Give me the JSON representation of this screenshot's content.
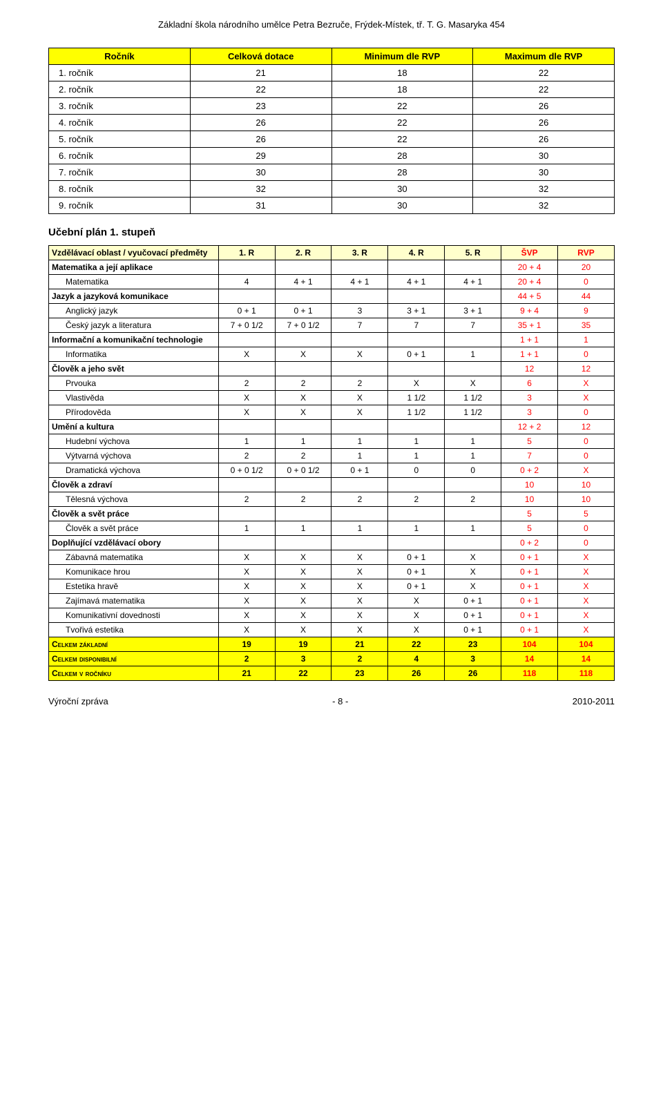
{
  "header": "Základní škola národního umělce Petra Bezruče, Frýdek-Místek, tř. T. G. Masaryka 454",
  "table1": {
    "columns": [
      "Ročník",
      "Celková dotace",
      "Minimum dle RVP",
      "Maximum dle RVP"
    ],
    "rows": [
      [
        "1. ročník",
        "21",
        "18",
        "22"
      ],
      [
        "2. ročník",
        "22",
        "18",
        "22"
      ],
      [
        "3. ročník",
        "23",
        "22",
        "26"
      ],
      [
        "4. ročník",
        "26",
        "22",
        "26"
      ],
      [
        "5. ročník",
        "26",
        "22",
        "26"
      ],
      [
        "6. ročník",
        "29",
        "28",
        "30"
      ],
      [
        "7. ročník",
        "30",
        "28",
        "30"
      ],
      [
        "8. ročník",
        "32",
        "30",
        "32"
      ],
      [
        "9. ročník",
        "31",
        "30",
        "32"
      ]
    ]
  },
  "section_title": "Učební plán 1. stupeň",
  "table2": {
    "columns": [
      "Vzdělávací oblast / vyučovací předměty",
      "1. R",
      "2. R",
      "3. R",
      "4. R",
      "5. R",
      "ŠVP",
      "RVP"
    ],
    "rows": [
      {
        "type": "cat",
        "cells": [
          "Matematika a její aplikace",
          "",
          "",
          "",
          "",
          "",
          "20 + 4",
          "20"
        ]
      },
      {
        "type": "sub",
        "cells": [
          "Matematika",
          "4",
          "4 + 1",
          "4 + 1",
          "4 + 1",
          "4 + 1",
          "20 + 4",
          "0"
        ]
      },
      {
        "type": "cat",
        "cells": [
          "Jazyk a jazyková komunikace",
          "",
          "",
          "",
          "",
          "",
          "44 + 5",
          "44"
        ]
      },
      {
        "type": "sub",
        "cells": [
          "Anglický jazyk",
          "0 + 1",
          "0 + 1",
          "3",
          "3 + 1",
          "3 + 1",
          "9 + 4",
          "9"
        ]
      },
      {
        "type": "sub",
        "cells": [
          "Český jazyk a literatura",
          "7 + 0 1/2",
          "7 + 0 1/2",
          "7",
          "7",
          "7",
          "35 + 1",
          "35"
        ]
      },
      {
        "type": "cat",
        "cells": [
          "Informační a komunikační technologie",
          "",
          "",
          "",
          "",
          "",
          "1 + 1",
          "1"
        ]
      },
      {
        "type": "sub",
        "cells": [
          "Informatika",
          "X",
          "X",
          "X",
          "0 + 1",
          "1",
          "1 + 1",
          "0"
        ]
      },
      {
        "type": "cat",
        "cells": [
          "Člověk a jeho svět",
          "",
          "",
          "",
          "",
          "",
          "12",
          "12"
        ]
      },
      {
        "type": "sub",
        "cells": [
          "Prvouka",
          "2",
          "2",
          "2",
          "X",
          "X",
          "6",
          "X"
        ]
      },
      {
        "type": "sub",
        "cells": [
          "Vlastivěda",
          "X",
          "X",
          "X",
          "1 1/2",
          "1 1/2",
          "3",
          "X"
        ]
      },
      {
        "type": "sub",
        "cells": [
          "Přírodověda",
          "X",
          "X",
          "X",
          "1 1/2",
          "1 1/2",
          "3",
          "0"
        ]
      },
      {
        "type": "cat",
        "cells": [
          "Umění a kultura",
          "",
          "",
          "",
          "",
          "",
          "12 + 2",
          "12"
        ]
      },
      {
        "type": "sub",
        "cells": [
          "Hudební výchova",
          "1",
          "1",
          "1",
          "1",
          "1",
          "5",
          "0"
        ]
      },
      {
        "type": "sub",
        "cells": [
          "Výtvarná výchova",
          "2",
          "2",
          "1",
          "1",
          "1",
          "7",
          "0"
        ]
      },
      {
        "type": "sub",
        "cells": [
          "Dramatická výchova",
          "0 + 0 1/2",
          "0 + 0 1/2",
          "0 + 1",
          "0",
          "0",
          "0 + 2",
          "X"
        ]
      },
      {
        "type": "cat",
        "cells": [
          "Člověk a zdraví",
          "",
          "",
          "",
          "",
          "",
          "10",
          "10"
        ]
      },
      {
        "type": "sub",
        "cells": [
          "Tělesná výchova",
          "2",
          "2",
          "2",
          "2",
          "2",
          "10",
          "10"
        ]
      },
      {
        "type": "cat",
        "cells": [
          "Člověk a svět práce",
          "",
          "",
          "",
          "",
          "",
          "5",
          "5"
        ]
      },
      {
        "type": "sub",
        "cells": [
          "Člověk a svět práce",
          "1",
          "1",
          "1",
          "1",
          "1",
          "5",
          "0"
        ]
      },
      {
        "type": "cat",
        "cells": [
          "Doplňující vzdělávací obory",
          "",
          "",
          "",
          "",
          "",
          "0 + 2",
          "0"
        ]
      },
      {
        "type": "sub",
        "cells": [
          "Zábavná matematika",
          "X",
          "X",
          "X",
          "0 + 1",
          "X",
          "0 + 1",
          "X"
        ]
      },
      {
        "type": "sub",
        "cells": [
          "Komunikace hrou",
          "X",
          "X",
          "X",
          "0 + 1",
          "X",
          "0 + 1",
          "X"
        ]
      },
      {
        "type": "sub",
        "cells": [
          "Estetika hravě",
          "X",
          "X",
          "X",
          "0 + 1",
          "X",
          "0 + 1",
          "X"
        ]
      },
      {
        "type": "sub",
        "cells": [
          "Zajímavá matematika",
          "X",
          "X",
          "X",
          "X",
          "0 + 1",
          "0 + 1",
          "X"
        ]
      },
      {
        "type": "sub",
        "cells": [
          "Komunikativní dovednosti",
          "X",
          "X",
          "X",
          "X",
          "0 + 1",
          "0 + 1",
          "X"
        ]
      },
      {
        "type": "sub",
        "cells": [
          "Tvořivá estetika",
          "X",
          "X",
          "X",
          "X",
          "0 + 1",
          "0 + 1",
          "X"
        ]
      },
      {
        "type": "total",
        "cells": [
          "Celkem základní",
          "19",
          "19",
          "21",
          "22",
          "23",
          "104",
          "104"
        ]
      },
      {
        "type": "total",
        "cells": [
          "Celkem disponibilní",
          "2",
          "3",
          "2",
          "4",
          "3",
          "14",
          "14"
        ]
      },
      {
        "type": "total",
        "cells": [
          "Celkem v ročníku",
          "21",
          "22",
          "23",
          "26",
          "26",
          "118",
          "118"
        ]
      }
    ]
  },
  "footer": {
    "left": "Výroční zpráva",
    "center": "- 8 -",
    "right": "2010-2011"
  }
}
